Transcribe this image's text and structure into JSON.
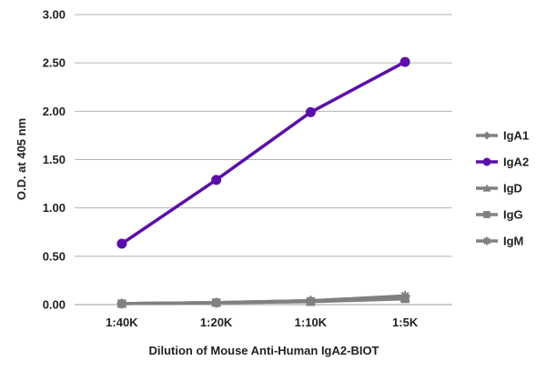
{
  "chart_data": {
    "type": "line",
    "xlabel": "Dilution of Mouse Anti-Human IgA2-BIOT",
    "ylabel": "O.D. at 405 nm",
    "categories": [
      "1:40K",
      "1:20K",
      "1:10K",
      "1:5K"
    ],
    "ylim": [
      0,
      3
    ],
    "y_ticks": [
      "0.00",
      "0.50",
      "1.00",
      "1.50",
      "2.00",
      "2.50",
      "3.00"
    ],
    "grid": "horizontal",
    "legend_position": "right",
    "series": [
      {
        "name": "IgA1",
        "marker": "diamond",
        "color": "#808080",
        "values": [
          0.01,
          0.02,
          0.04,
          0.08
        ]
      },
      {
        "name": "IgA2",
        "marker": "circle",
        "color": "#5b0fa8",
        "values": [
          0.63,
          1.29,
          1.99,
          2.51
        ]
      },
      {
        "name": "IgD",
        "marker": "triangle",
        "color": "#808080",
        "values": [
          0.01,
          0.02,
          0.04,
          0.07
        ]
      },
      {
        "name": "IgG",
        "marker": "square",
        "color": "#808080",
        "values": [
          0.01,
          0.02,
          0.03,
          0.06
        ]
      },
      {
        "name": "IgM",
        "marker": "star",
        "color": "#808080",
        "values": [
          0.01,
          0.02,
          0.04,
          0.09
        ]
      }
    ]
  }
}
